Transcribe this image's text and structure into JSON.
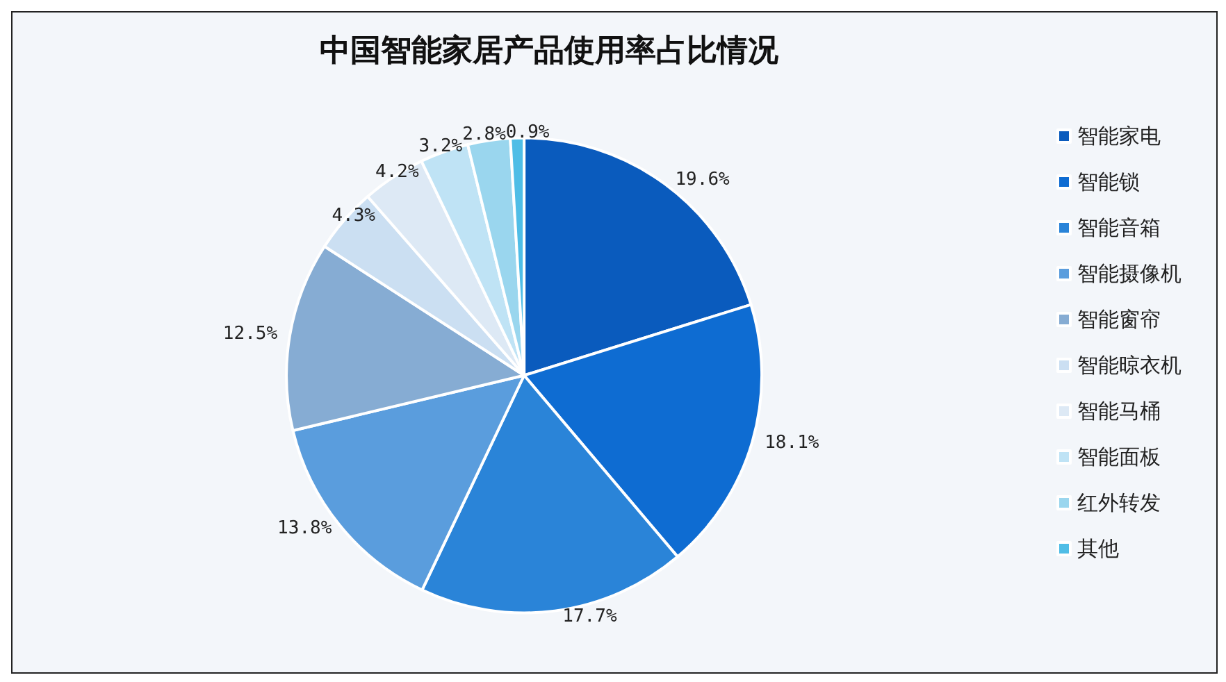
{
  "chart_data": {
    "type": "pie",
    "title": "中国智能家居产品使用率占比情况",
    "categories": [
      "智能家电",
      "智能锁",
      "智能音箱",
      "智能摄像机",
      "智能窗帘",
      "智能晾衣机",
      "智能马桶",
      "智能面板",
      "红外转发",
      "其他"
    ],
    "values": [
      19.6,
      18.1,
      17.7,
      13.8,
      12.5,
      4.3,
      4.2,
      3.2,
      2.8,
      0.9
    ],
    "value_labels": [
      "19.6%",
      "18.1%",
      "17.7%",
      "13.8%",
      "12.5%",
      "4.3%",
      "4.2%",
      "3.2%",
      "2.8%",
      "0.9%"
    ],
    "colors": [
      "#0a5bbd",
      "#0e6cd2",
      "#2a84d8",
      "#5a9ddd",
      "#86acd3",
      "#cbdff2",
      "#dde9f5",
      "#bfe3f5",
      "#9ad6ee",
      "#4fbde6"
    ],
    "legend": "right"
  }
}
